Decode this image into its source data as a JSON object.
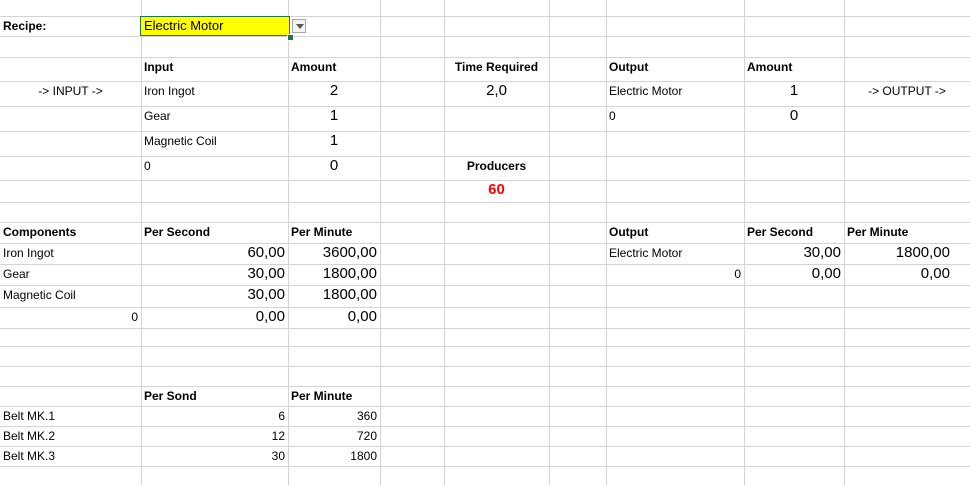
{
  "recipe": {
    "label": "Recipe:",
    "selected": "Electric Motor"
  },
  "input_section": {
    "arrow": "-> INPUT ->",
    "col_input": "Input",
    "col_amount": "Amount",
    "rows": [
      {
        "name": "Iron Ingot",
        "amount": "2"
      },
      {
        "name": "Gear",
        "amount": "1"
      },
      {
        "name": "Magnetic Coil",
        "amount": "1"
      },
      {
        "name": "0",
        "amount": "0"
      }
    ]
  },
  "time": {
    "label": "Time Required",
    "value": "2,0"
  },
  "producers": {
    "label": "Producers",
    "value": "60"
  },
  "output_section": {
    "col_output": "Output",
    "col_amount": "Amount",
    "arrow": "-> OUTPUT ->",
    "rows": [
      {
        "name": "Electric Motor",
        "amount": "1"
      },
      {
        "name": "0",
        "amount": "0"
      }
    ]
  },
  "components": {
    "col_name": "Components",
    "col_per_second": "Per Second",
    "col_per_minute": "Per Minute",
    "rows": [
      {
        "name": "Iron Ingot",
        "per_second": "60,00",
        "per_minute": "3600,00"
      },
      {
        "name": "Gear",
        "per_second": "30,00",
        "per_minute": "1800,00"
      },
      {
        "name": "Magnetic Coil",
        "per_second": "30,00",
        "per_minute": "1800,00"
      },
      {
        "name": "0",
        "per_second": "0,00",
        "per_minute": "0,00"
      }
    ]
  },
  "output_rates": {
    "col_name": "Output",
    "col_per_second": "Per Second",
    "col_per_minute": "Per Minute",
    "rows": [
      {
        "name": "Electric Motor",
        "per_second": "30,00",
        "per_minute": "1800,00"
      },
      {
        "name": "0",
        "per_second": "0,00",
        "per_minute": "0,00"
      }
    ]
  },
  "belts": {
    "col_per_second": "Per Sond",
    "col_per_minute": "Per Minute",
    "rows": [
      {
        "name": "Belt MK.1",
        "per_second": "6",
        "per_minute": "360"
      },
      {
        "name": "Belt MK.2",
        "per_second": "12",
        "per_minute": "720"
      },
      {
        "name": "Belt MK.3",
        "per_second": "30",
        "per_minute": "1800"
      }
    ]
  }
}
